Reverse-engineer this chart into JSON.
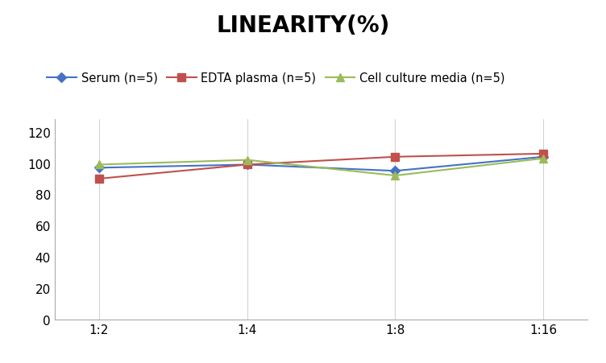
{
  "title": "LINEARITY(%)",
  "x_labels": [
    "1:2",
    "1:4",
    "1:8",
    "1:16"
  ],
  "x_values": [
    0,
    1,
    2,
    3
  ],
  "series": [
    {
      "label": "Serum (n=5)",
      "values": [
        97,
        99,
        95,
        104
      ],
      "color": "#4472C4",
      "marker": "D",
      "markersize": 6
    },
    {
      "label": "EDTA plasma (n=5)",
      "values": [
        90,
        99,
        104,
        106
      ],
      "color": "#C0504D",
      "marker": "s",
      "markersize": 7
    },
    {
      "label": "Cell culture media (n=5)",
      "values": [
        99,
        102,
        92,
        103
      ],
      "color": "#9BBB59",
      "marker": "^",
      "markersize": 7
    }
  ],
  "ylim": [
    0,
    128
  ],
  "yticks": [
    0,
    20,
    40,
    60,
    80,
    100,
    120
  ],
  "background_color": "#FFFFFF",
  "grid_color": "#D3D3D3",
  "title_fontsize": 20,
  "legend_fontsize": 10.5,
  "tick_fontsize": 11
}
